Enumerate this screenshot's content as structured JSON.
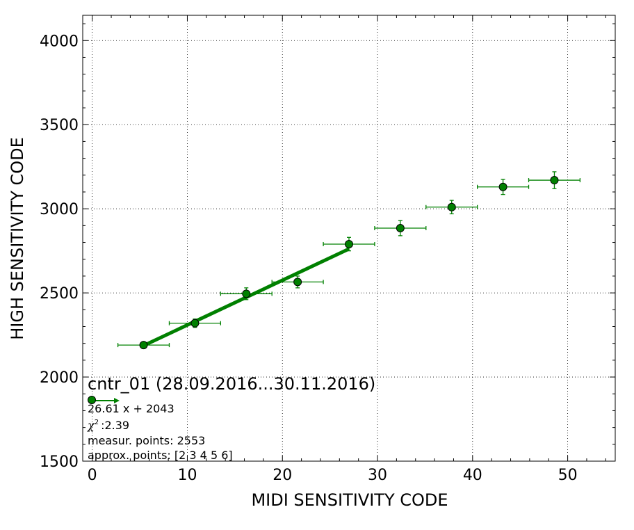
{
  "chart_data": {
    "type": "scatter",
    "xlabel": "MIDI SENSITIVITY CODE",
    "ylabel": "HIGH SENSITIVITY CODE",
    "xlim": [
      -1,
      55
    ],
    "ylim": [
      1500,
      4150
    ],
    "xticks": [
      0,
      10,
      20,
      30,
      40,
      50
    ],
    "yticks": [
      1500,
      2000,
      2500,
      3000,
      3500,
      4000
    ],
    "grid": true,
    "colors": {
      "series": "#008000",
      "marker_edge": "#000000"
    },
    "series": [
      {
        "points": [
          {
            "x": 5.4,
            "y": 2190,
            "xerr": 2.7,
            "yerr": 15
          },
          {
            "x": 10.8,
            "y": 2320,
            "xerr": 2.7,
            "yerr": 25
          },
          {
            "x": 16.2,
            "y": 2495,
            "xerr": 2.7,
            "yerr": 35
          },
          {
            "x": 21.6,
            "y": 2565,
            "xerr": 2.7,
            "yerr": 35
          },
          {
            "x": 27.0,
            "y": 2790,
            "xerr": 2.7,
            "yerr": 40
          },
          {
            "x": 32.4,
            "y": 2885,
            "xerr": 2.7,
            "yerr": 45
          },
          {
            "x": 37.8,
            "y": 3010,
            "xerr": 2.7,
            "yerr": 40
          },
          {
            "x": 43.2,
            "y": 3130,
            "xerr": 2.7,
            "yerr": 45
          },
          {
            "x": 48.6,
            "y": 3170,
            "xerr": 2.7,
            "yerr": 50
          }
        ]
      }
    ],
    "fit": {
      "slope": 26.61,
      "intercept": 2043,
      "x_range": [
        5.4,
        27.0
      ]
    },
    "legend": {
      "title": "cntr_01 (28.09.2016...30.11.2016)",
      "equation": "26.61 x + 2043",
      "chi_symbol": "χ",
      "chi_power": "2",
      "chi_value": ":2.39",
      "measur_points": "measur. points: 2553",
      "approx_points": "approx. points: [2 3 4 5 6]",
      "placement": "bottom-left"
    }
  }
}
